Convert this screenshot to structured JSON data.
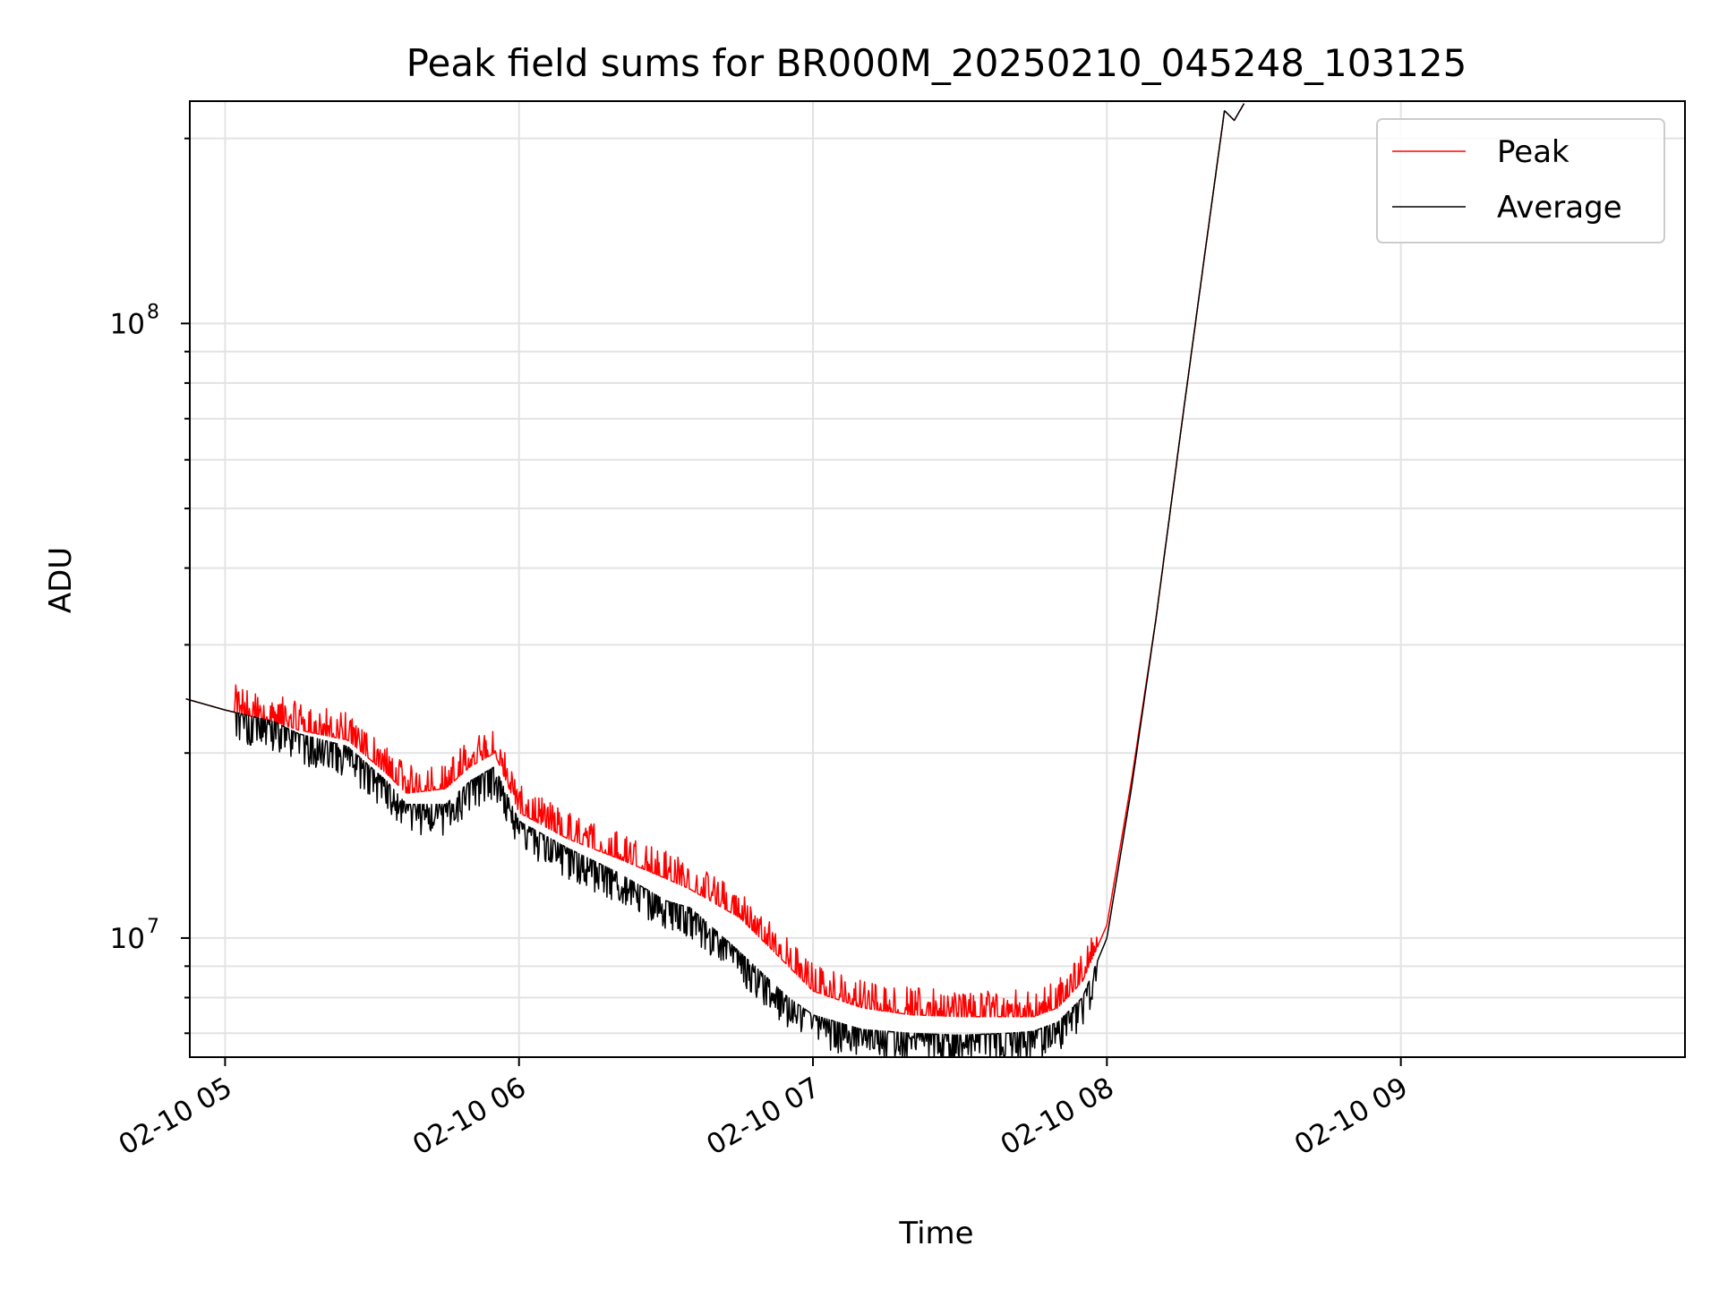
{
  "chart_data": {
    "type": "line",
    "title": "Peak field sums for BR000M_20250210_045248_103125",
    "xlabel": "Time",
    "ylabel": "ADU",
    "y_scale": "log",
    "ylim": [
      6400000,
      230000000
    ],
    "xlim": [
      "2025-02-10 04:52:48",
      "2025-02-10 09:58:00"
    ],
    "x_tick_labels": [
      "02-10 05",
      "02-10 06",
      "02-10 07",
      "02-10 08",
      "02-10 09"
    ],
    "x_ticks": [
      "2025-02-10 05:00",
      "2025-02-10 06:00",
      "2025-02-10 07:00",
      "2025-02-10 08:00",
      "2025-02-10 09:00"
    ],
    "y_tick_labels": [
      {
        "base": "10",
        "exp": "7",
        "value": 10000000
      },
      {
        "base": "10",
        "exp": "8",
        "value": 100000000
      }
    ],
    "grid": true,
    "legend_position": "top-right",
    "x": [
      "2025-02-10 04:52",
      "2025-02-10 05:00",
      "2025-02-10 05:10",
      "2025-02-10 05:15",
      "2025-02-10 05:25",
      "2025-02-10 05:33",
      "2025-02-10 05:37",
      "2025-02-10 05:45",
      "2025-02-10 05:50",
      "2025-02-10 05:55",
      "2025-02-10 06:00",
      "2025-02-10 06:10",
      "2025-02-10 06:20",
      "2025-02-10 06:30",
      "2025-02-10 06:35",
      "2025-02-10 06:45",
      "2025-02-10 06:55",
      "2025-02-10 07:00",
      "2025-02-10 07:10",
      "2025-02-10 07:20",
      "2025-02-10 07:30",
      "2025-02-10 07:40",
      "2025-02-10 07:45",
      "2025-02-10 07:50",
      "2025-02-10 07:55",
      "2025-02-10 08:00",
      "2025-02-10 08:05",
      "2025-02-10 08:10",
      "2025-02-10 08:15",
      "2025-02-10 08:20",
      "2025-02-10 08:24",
      "2025-02-10 08:26",
      "2025-02-10 08:28"
    ],
    "series": [
      {
        "name": "Peak",
        "color": "#ff0000",
        "noise": "up",
        "values": [
          24500000,
          23500000,
          22500000,
          21800000,
          21000000,
          18500000,
          17200000,
          17500000,
          19000000,
          20000000,
          16000000,
          14500000,
          13500000,
          12500000,
          12000000,
          10800000,
          9000000,
          8200000,
          7700000,
          7500000,
          7450000,
          7450000,
          7450000,
          7700000,
          8500000,
          10500000,
          18000000,
          33000000,
          66000000,
          130000000,
          222000000,
          214000000,
          228000000
        ]
      },
      {
        "name": "Average",
        "color": "#000000",
        "noise": "down",
        "values": [
          24500000,
          23500000,
          22500000,
          21500000,
          20500000,
          18000000,
          16500000,
          16500000,
          18000000,
          19000000,
          15500000,
          14000000,
          12800000,
          11500000,
          11200000,
          9500000,
          8000000,
          7500000,
          7100000,
          7000000,
          6950000,
          7000000,
          7050000,
          7300000,
          8000000,
          10000000,
          17500000,
          33000000,
          66000000,
          130000000,
          222000000,
          214000000,
          228000000
        ]
      }
    ]
  }
}
